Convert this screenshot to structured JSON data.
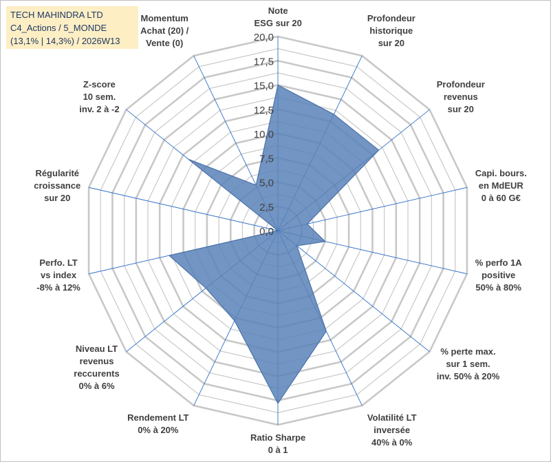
{
  "header": {
    "line1": "TECH MAHINDRA LTD",
    "line2": "C4_Actions / 5_MONDE",
    "line3": "(13,1% | 14,3%) / 2026W13"
  },
  "colors": {
    "fill": "#5b83b8",
    "stroke": "#4a72a8",
    "grid": "#c8c8c8",
    "spoke": "#2e6fc7",
    "tick_text": "#404040"
  },
  "chart_data": {
    "type": "radar",
    "r_range": [
      0,
      20
    ],
    "r_ticks": [
      "0,0",
      "2,5",
      "5,0",
      "7,5",
      "10,0",
      "12,5",
      "15,0",
      "17,5",
      "20,0"
    ],
    "r_tick_values": [
      0,
      2.5,
      5,
      7.5,
      10,
      12.5,
      15,
      17.5,
      20
    ],
    "categories": [
      {
        "lines": [
          "Note",
          "ESG sur 20"
        ]
      },
      {
        "lines": [
          "Profondeur",
          "historique",
          "sur 20"
        ]
      },
      {
        "lines": [
          "Profondeur",
          "revenus",
          "sur 20"
        ]
      },
      {
        "lines": [
          "Capi. bours.",
          "en MdEUR",
          "0 à 60 G€"
        ]
      },
      {
        "lines": [
          "% perfo 1A",
          "positive",
          "50% à 80%"
        ]
      },
      {
        "lines": [
          "% perte max.",
          "sur 1 sem.",
          "inv. 50% à 20%"
        ]
      },
      {
        "lines": [
          "Volatilité LT",
          "inversée",
          "40% à 0%"
        ]
      },
      {
        "lines": [
          "Ratio Sharpe",
          "0 à 1"
        ]
      },
      {
        "lines": [
          "Rendement LT",
          "0% à 20%"
        ]
      },
      {
        "lines": [
          "Niveau LT",
          "revenus",
          "reccurents",
          "0% à 6%"
        ]
      },
      {
        "lines": [
          "Perfo. LT",
          "vs index",
          "-8% à 12%"
        ]
      },
      {
        "lines": [
          "Régularité",
          "croissance",
          "sur 20"
        ]
      },
      {
        "lines": [
          "Z-score",
          "10 sem.",
          "inv. 2 à -2"
        ]
      },
      {
        "lines": [
          "Momentum",
          "Achat (20) /",
          "Vente (0)"
        ]
      }
    ],
    "series": [
      {
        "name": "TECH MAHINDRA LTD",
        "values": [
          15.0,
          13.3,
          13.3,
          3.1,
          5.0,
          2.5,
          11.5,
          17.8,
          10.3,
          9.5,
          11.5,
          0.0,
          11.8,
          5.2
        ]
      }
    ]
  }
}
